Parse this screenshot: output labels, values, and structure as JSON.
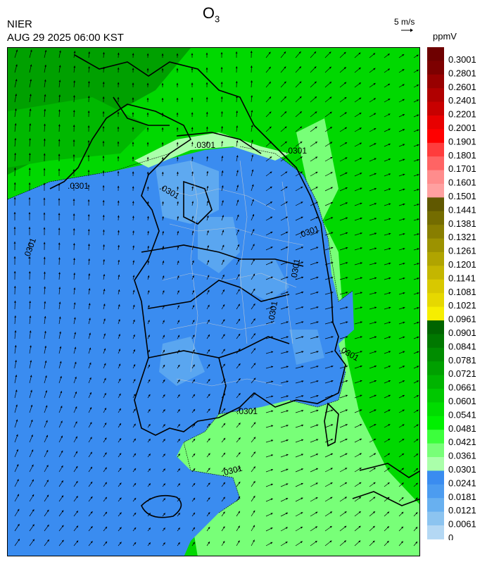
{
  "header": {
    "species": "O",
    "species_sub": "3",
    "agency": "NIER",
    "timestamp": "AUG 29 2025 06:00 KST",
    "wind_ref_label": "5 m/s",
    "unit": "ppmV"
  },
  "contour_labels": [
    ".0301",
    ".0301",
    ".0301",
    ".0301",
    ".0301",
    ".0301",
    ".0301",
    ".0301",
    ".0301",
    ".0301",
    ".0301"
  ],
  "colorbar": {
    "labels": [
      "0.3001",
      "0.2801",
      "0.2601",
      "0.2401",
      "0.2201",
      "0.2001",
      "0.1901",
      "0.1801",
      "0.1701",
      "0.1601",
      "0.1501",
      "0.1441",
      "0.1381",
      "0.1321",
      "0.1261",
      "0.1201",
      "0.1141",
      "0.1081",
      "0.1021",
      "0.0961",
      "0.0901",
      "0.0841",
      "0.0781",
      "0.0721",
      "0.0661",
      "0.0601",
      "0.0541",
      "0.0481",
      "0.0421",
      "0.0361",
      "0.0301",
      "0.0241",
      "0.0181",
      "0.0121",
      "0.0061",
      "0"
    ],
    "colors": [
      "#6e0000",
      "#7d0000",
      "#980000",
      "#b00000",
      "#c80000",
      "#e80000",
      "#ff0000",
      "#ff3c3c",
      "#ff6464",
      "#ff8c8c",
      "#ffa0a0",
      "#605800",
      "#746c00",
      "#887e00",
      "#9c9200",
      "#b0a400",
      "#c4b600",
      "#d8c800",
      "#e6d800",
      "#f6ee00",
      "#006400",
      "#007800",
      "#008c00",
      "#00a000",
      "#00b400",
      "#00c800",
      "#00dc00",
      "#00f000",
      "#3cff3c",
      "#78ff78",
      "#aaffaa",
      "#3a8cf0",
      "#4c9cf0",
      "#68b0f0",
      "#8cc4f0",
      "#b4d8f4"
    ]
  }
}
